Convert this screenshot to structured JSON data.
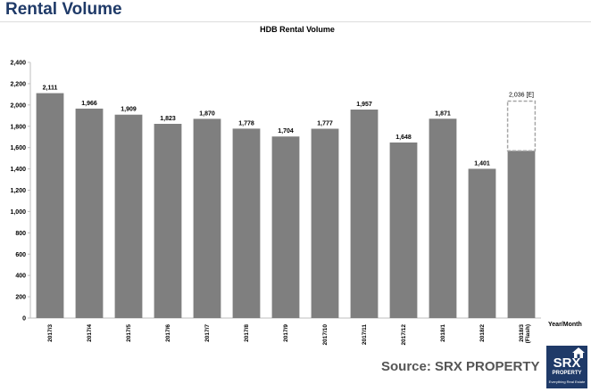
{
  "header": {
    "title": "Rental Volume"
  },
  "footer": {
    "source": "Source:  SRX PROPERTY"
  },
  "logo": {
    "main": "SRX",
    "sub": "PROPERTY",
    "tagline": "Everything Real Estate",
    "icon": "house-icon",
    "color": "#1f3a68"
  },
  "chart_data": {
    "type": "bar",
    "title": "HDB Rental Volume",
    "xlabel": "Year/Month",
    "ylabel": "",
    "ylim": [
      0,
      2400
    ],
    "yticks": [
      0,
      200,
      400,
      600,
      800,
      1000,
      1200,
      1400,
      1600,
      1800,
      2000,
      2200,
      2400
    ],
    "ytick_labels": [
      "0",
      "200",
      "400",
      "600",
      "800",
      "1,000",
      "1,200",
      "1,400",
      "1,600",
      "1,800",
      "2,000",
      "2,200",
      "2,400"
    ],
    "categories": [
      "2017/3",
      "2017/4",
      "2017/5",
      "2017/6",
      "2017/7",
      "2017/8",
      "2017/9",
      "2017/10",
      "2017/11",
      "2017/12",
      "2018/1",
      "2018/2",
      "2018/3\n(Flash)"
    ],
    "values": [
      2111,
      1966,
      1909,
      1823,
      1870,
      1778,
      1704,
      1777,
      1957,
      1648,
      1871,
      1401,
      1570
    ],
    "value_labels": [
      "2,111",
      "1,966",
      "1,909",
      "1,823",
      "1,870",
      "1,778",
      "1,704",
      "1,777",
      "1,957",
      "1,648",
      "1,871",
      "1,401",
      ""
    ],
    "estimate": {
      "category": "2018/3\n(Flash)",
      "value": 2036,
      "label": "2,036 [E]"
    },
    "grid": false,
    "bar_color": "#7f7f7f",
    "estimate_border_color": "#a6a6a6"
  }
}
